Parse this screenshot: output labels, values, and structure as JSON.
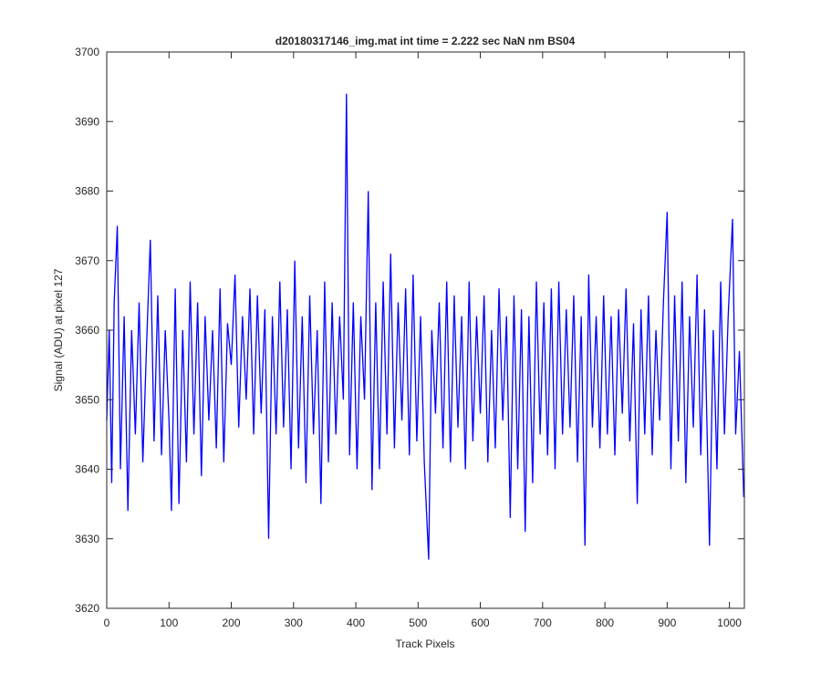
{
  "chart_data": {
    "type": "line",
    "title": "d20180317146_img.mat int time = 2.222 sec  NaN nm BS04",
    "xlabel": "Track Pixels",
    "ylabel": "Signal (ADU) at pixel 127",
    "xlim": [
      0,
      1024
    ],
    "ylim": [
      3620,
      3700
    ],
    "xticks": [
      0,
      100,
      200,
      300,
      400,
      500,
      600,
      700,
      800,
      900,
      1000
    ],
    "yticks": [
      3620,
      3630,
      3640,
      3650,
      3660,
      3670,
      3680,
      3690,
      3700
    ],
    "grid": false,
    "x": [
      0,
      4,
      8,
      12,
      17,
      22,
      28,
      34,
      40,
      46,
      52,
      58,
      64,
      70,
      76,
      82,
      88,
      94,
      100,
      104,
      110,
      116,
      122,
      128,
      134,
      140,
      146,
      152,
      158,
      164,
      170,
      176,
      182,
      188,
      194,
      200,
      206,
      212,
      218,
      224,
      230,
      236,
      242,
      248,
      254,
      260,
      266,
      272,
      278,
      284,
      290,
      296,
      302,
      308,
      314,
      320,
      326,
      332,
      338,
      344,
      350,
      356,
      362,
      368,
      374,
      380,
      385,
      390,
      396,
      402,
      408,
      414,
      420,
      426,
      432,
      438,
      444,
      450,
      456,
      462,
      468,
      474,
      480,
      486,
      492,
      498,
      504,
      510,
      517,
      522,
      528,
      534,
      540,
      546,
      552,
      558,
      564,
      570,
      576,
      582,
      588,
      594,
      600,
      606,
      612,
      618,
      624,
      630,
      636,
      642,
      648,
      654,
      660,
      666,
      672,
      678,
      684,
      690,
      696,
      702,
      708,
      714,
      720,
      726,
      732,
      738,
      744,
      750,
      756,
      762,
      768,
      774,
      780,
      786,
      792,
      798,
      804,
      810,
      816,
      822,
      828,
      834,
      840,
      846,
      852,
      858,
      864,
      870,
      876,
      882,
      888,
      894,
      900,
      906,
      912,
      918,
      924,
      930,
      936,
      942,
      948,
      954,
      960,
      968,
      974,
      980,
      986,
      992,
      998,
      1005,
      1010,
      1016,
      1023
    ],
    "series": [
      {
        "color": "#0000ff",
        "values": [
          3647,
          3660,
          3638,
          3664,
          3675,
          3640,
          3662,
          3634,
          3660,
          3645,
          3664,
          3641,
          3658,
          3673,
          3644,
          3665,
          3642,
          3660,
          3647,
          3634,
          3666,
          3635,
          3660,
          3641,
          3667,
          3645,
          3664,
          3639,
          3662,
          3647,
          3660,
          3643,
          3666,
          3641,
          3661,
          3655,
          3668,
          3646,
          3662,
          3650,
          3666,
          3645,
          3665,
          3648,
          3663,
          3630,
          3662,
          3645,
          3667,
          3646,
          3663,
          3640,
          3670,
          3643,
          3662,
          3638,
          3665,
          3645,
          3660,
          3635,
          3667,
          3641,
          3664,
          3645,
          3662,
          3650,
          3694,
          3642,
          3664,
          3640,
          3662,
          3650,
          3680,
          3637,
          3664,
          3640,
          3667,
          3645,
          3671,
          3643,
          3664,
          3647,
          3666,
          3642,
          3668,
          3644,
          3662,
          3641,
          3627,
          3660,
          3648,
          3664,
          3643,
          3667,
          3641,
          3665,
          3646,
          3662,
          3640,
          3667,
          3644,
          3662,
          3648,
          3665,
          3641,
          3660,
          3643,
          3666,
          3647,
          3662,
          3633,
          3665,
          3640,
          3663,
          3631,
          3662,
          3638,
          3667,
          3645,
          3664,
          3642,
          3666,
          3640,
          3667,
          3645,
          3663,
          3646,
          3665,
          3641,
          3662,
          3629,
          3668,
          3646,
          3662,
          3643,
          3665,
          3645,
          3662,
          3642,
          3663,
          3648,
          3666,
          3644,
          3661,
          3635,
          3663,
          3645,
          3665,
          3642,
          3660,
          3647,
          3664,
          3677,
          3640,
          3665,
          3644,
          3667,
          3638,
          3662,
          3646,
          3668,
          3642,
          3663,
          3629,
          3660,
          3640,
          3667,
          3645,
          3662,
          3676,
          3645,
          3657,
          3636
        ]
      }
    ]
  }
}
